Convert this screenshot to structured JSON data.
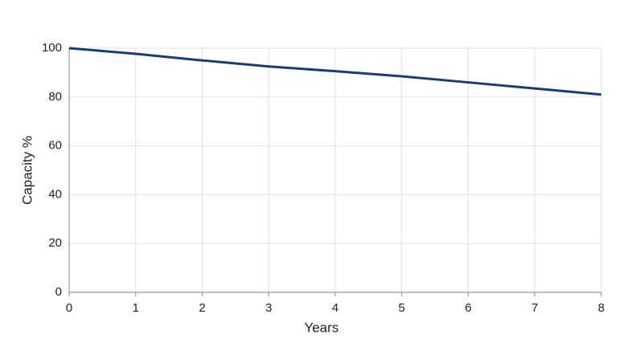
{
  "chart_data": {
    "type": "line",
    "x_label": "Years",
    "y_label": "Capacity %",
    "x": [
      0,
      1,
      2,
      3,
      4,
      5,
      6,
      7,
      8
    ],
    "series": [
      {
        "color": "#1c3d6b",
        "values": [
          100,
          97.7,
          95,
          92.5,
          90.6,
          88.5,
          86,
          83.5,
          81
        ]
      }
    ],
    "xlim": [
      0,
      8
    ],
    "xticks": [
      0,
      1,
      2,
      3,
      4,
      5,
      6,
      7,
      8
    ],
    "ylim": [
      0,
      100
    ],
    "yticks": [
      0,
      20,
      40,
      60,
      80,
      100
    ],
    "grid": true
  }
}
